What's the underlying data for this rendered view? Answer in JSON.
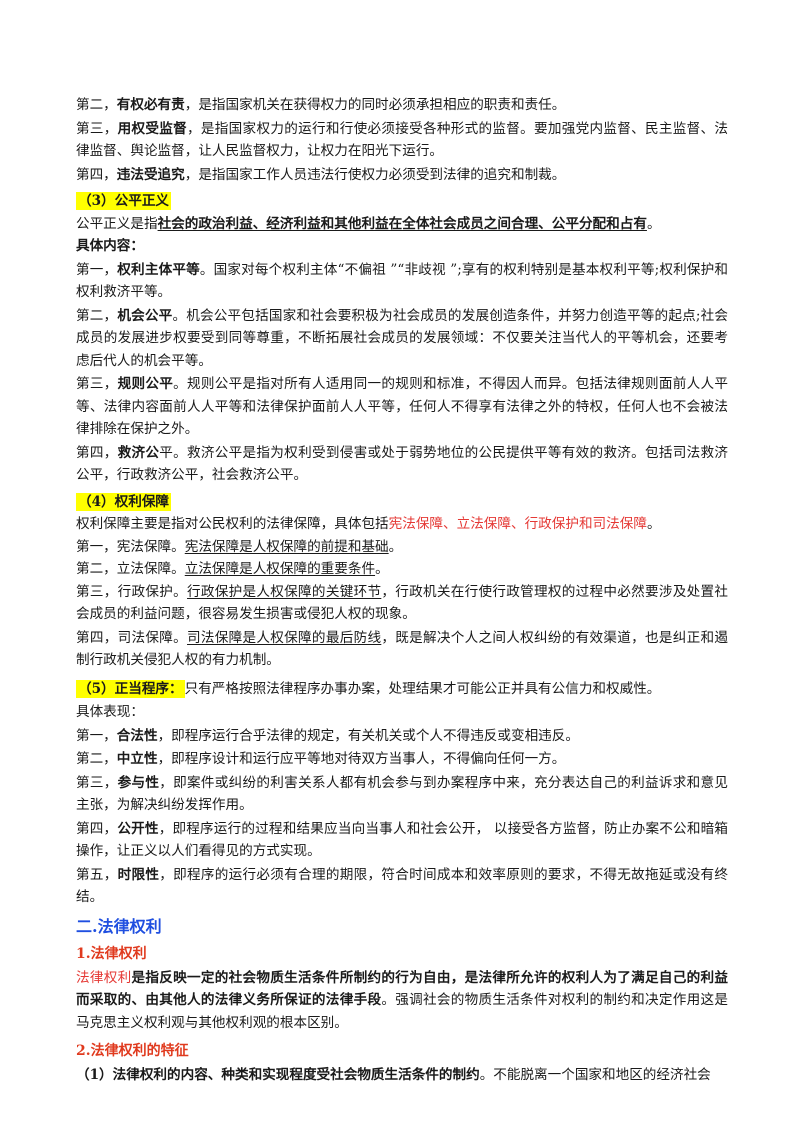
{
  "s1": {
    "p2": {
      "a": "第二，",
      "b": "有权必有责",
      "c": "，是指国家机关在获得权力的同时必须承担相应的职责和责任。"
    },
    "p3": {
      "a": "第三，",
      "b": "用权受监督",
      "c": "，是指国家权力的运行和行使必须接受各种形式的监督。要加强党内监督、民主监督、法律监督、舆论监督，让人民监督权力，让权力在阳光下运行。"
    },
    "p4": {
      "a": "第四，",
      "b": "违法受追究",
      "c": "，是指国家工作人员违法行使权力必须受到法律的追究和制裁。"
    }
  },
  "gongping": {
    "title": "（3）公平正义",
    "def_a": "公平正义是指",
    "def_b": "社会的政治利益、经济利益和其他利益在全体社会成员之间合理、公平分配和占有",
    "def_c": "。",
    "content_label": "具体内容：",
    "i1": {
      "a": "第一，",
      "b": "权利主体平等",
      "c": "。国家对每个权利主体“不偏祖 ”“非歧视 ”;享有的权利特别是基本权利平等;权利保护和权利救济平等。"
    },
    "i2": {
      "a": "第二，",
      "b": "机会公平",
      "c": "。机会公平包括国家和社会要积极为社会成员的发展创造条件，并努力创造平等的起点;社会成员的发展进步权要受到同等尊重，不断拓展社会成员的发展领域：不仅要关注当代人的平等机会，还要考虑后代人的机会平等。"
    },
    "i3": {
      "a": "第三，",
      "b": "规则公平",
      "c": "。规则公平是指对所有人适用同一的规则和标准，不得因人而异。包括法律规则面前人人平等、法律内容面前人人平等和法律保护面前人人平等，任何人不得享有法律之外的特权，任何人也不会被法律排除在保护之外。"
    },
    "i4": {
      "a": "第四，",
      "b": "救济公",
      "c": "平。救济公平是指为权利受到侵害或处于弱势地位的公民提供平等有效的救济。包括司法救济公平，行政救济公平，社会救济公平。"
    }
  },
  "baozhang": {
    "title": "（4）权利保障",
    "intro_a": "权利保障主要是指对公民权利的法律保障，具体包括",
    "intro_red": "宪法保障、立法保障、行政保护和司法保障",
    "intro_c": "。",
    "i1": {
      "a": "第一，宪法保障。",
      "u": "宪法保障是人权保障的前提和基础",
      "c": "。"
    },
    "i2": {
      "a": "第二，立法保障。",
      "u": "立法保障是人权保障的重要条件",
      "c": "。"
    },
    "i3": {
      "a": "第三，行政保护。",
      "u": "行政保护是人权保障的关键环节",
      "c": "，行政机关在行使行政管理权的过程中必然要涉及处置社会成员的利益问题，很容易发生损害或侵犯人权的现象。"
    },
    "i4": {
      "a": "第四，司法保障。",
      "u": "司法保障是人权保障的最后防线",
      "c": "，既是解决个人之间人权纠纷的有效渠道，也是纠正和遏制行政机关侵犯人权的有力机制。"
    }
  },
  "chengxu": {
    "title": "（5）正当程序：",
    "title_rest": "只有严格按照法律程序办事办案，处理结果才可能公正并具有公信力和权威性。",
    "label": "具体表现：",
    "i1": {
      "a": "第一，",
      "b": "合法性",
      "c": "，即程序运行合乎法律的规定，有关机关或个人不得违反或变相违反。"
    },
    "i2": {
      "a": "第二，",
      "b": "中立性",
      "c": "，即程序设计和运行应平等地对待双方当事人，不得偏向任何一方。"
    },
    "i3": {
      "a": "第三，",
      "b": "参与性",
      "c": "，即案件或纠纷的利害关系人都有机会参与到办案程序中来，充分表达自己的利益诉求和意见主张，为解决纠纷发挥作用。"
    },
    "i4": {
      "a": "第四，",
      "b": "公开性",
      "c": "，即程序运行的过程和结果应当向当事人和社会公开， 以接受各方监督，防止办案不公和暗箱操作，让正义以人们看得见的方式实现。"
    },
    "i5": {
      "a": "第五，",
      "b": "时限性",
      "c": "，即程序的运行必须有合理的期限，符合时间成本和效率原则的要求，不得无故拖延或没有终结。"
    }
  },
  "quanli": {
    "h2": "二.法律权利",
    "h3_1": "1.法律权利",
    "def_red": "法律权利",
    "def_b": "是指反映一定的社会物质生活条件所制约的行为自由，是法律所允许的权利人为了满足自己的利益而采取的、由其他人的法律义务所保证的法律手段",
    "def_c": "。强调社会的物质生活条件对权利的制约和决定作用这是马克思主义权利观与其他权利观的根本区别。",
    "h3_2": "2.法律权利的特征",
    "f1_b": "（1）法律权利的内容、种类和实现程度受社会物质生活条件的制约",
    "f1_c": "。不能脱离一个国家和地区的经济社会"
  }
}
